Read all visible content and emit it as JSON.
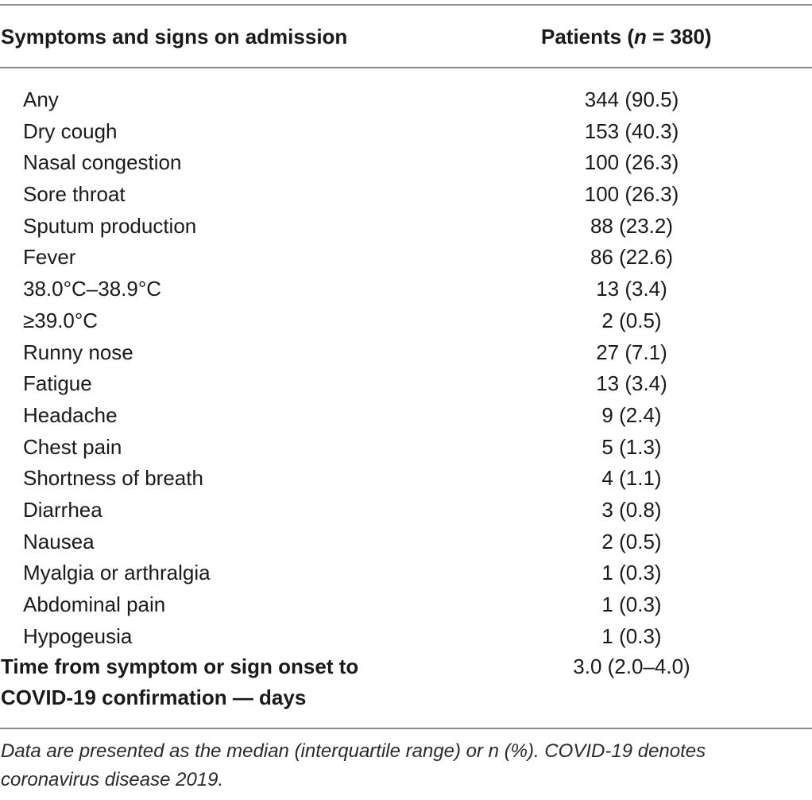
{
  "header": {
    "col1": "Symptoms and signs on admission",
    "col2_prefix": "Patients (",
    "col2_n": "n",
    "col2_suffix": " = 380)"
  },
  "rows": [
    {
      "label": "Any",
      "value": "344 (90.5)"
    },
    {
      "label": "Dry cough",
      "value": "153 (40.3)"
    },
    {
      "label": "Nasal congestion",
      "value": "100 (26.3)"
    },
    {
      "label": "Sore throat",
      "value": "100 (26.3)"
    },
    {
      "label": "Sputum production",
      "value": "88 (23.2)"
    },
    {
      "label": "Fever",
      "value": "86 (22.6)"
    },
    {
      "label": "38.0°C–38.9°C",
      "value": "13 (3.4)"
    },
    {
      "label": "≥39.0°C",
      "value": "2 (0.5)"
    },
    {
      "label": "Runny nose",
      "value": "27 (7.1)"
    },
    {
      "label": "Fatigue",
      "value": "13 (3.4)"
    },
    {
      "label": "Headache",
      "value": "9 (2.4)"
    },
    {
      "label": "Chest pain",
      "value": "5 (1.3)"
    },
    {
      "label": "Shortness of breath",
      "value": "4 (1.1)"
    },
    {
      "label": "Diarrhea",
      "value": "3 (0.8)"
    },
    {
      "label": "Nausea",
      "value": "2 (0.5)"
    },
    {
      "label": "Myalgia or arthralgia",
      "value": "1 (0.3)"
    },
    {
      "label": "Abdominal pain",
      "value": "1 (0.3)"
    },
    {
      "label": "Hypogeusia",
      "value": "1 (0.3)"
    }
  ],
  "summary": {
    "label_line1": "Time from symptom or sign onset to",
    "label_line2": "COVID-19 confirmation — days",
    "value": "3.0 (2.0–4.0)"
  },
  "footnote": "Data are presented as the median (interquartile range) or n (%). COVID-19 denotes coronavirus disease 2019."
}
